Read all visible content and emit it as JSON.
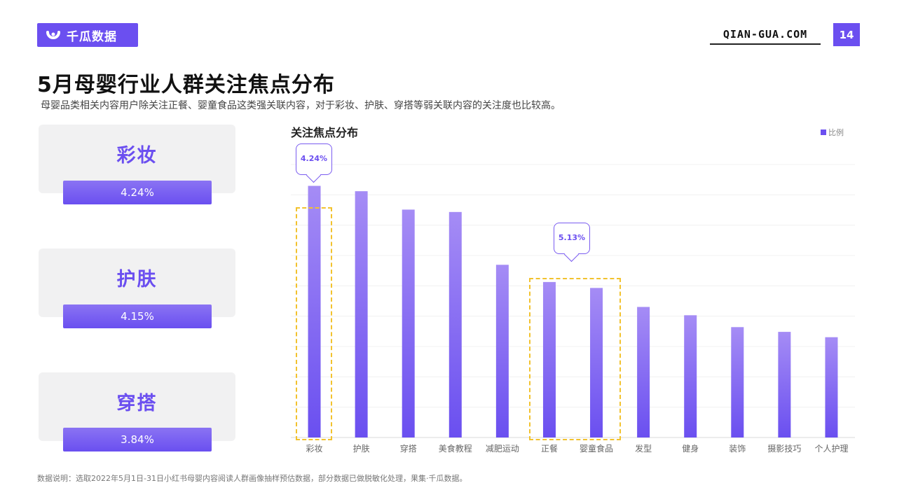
{
  "brand": {
    "logo_text": "千瓜数据",
    "site": "QIAN-GUA.COM",
    "page_number": "14",
    "accent_color": "#6b4ff0"
  },
  "header": {
    "title": "5月母婴行业人群关注焦点分布",
    "subtitle": "母婴品类相关内容用户除关注正餐、婴童食品这类强关联内容，对于彩妆、护肤、穿搭等弱关联内容的关注度也比较高。"
  },
  "cards": [
    {
      "label": "彩妆",
      "value": "4.24%"
    },
    {
      "label": "护肤",
      "value": "4.15%"
    },
    {
      "label": "穿搭",
      "value": "3.84%"
    }
  ],
  "callouts": {
    "left": "4.24%",
    "right": "5.13%"
  },
  "chart_data": {
    "type": "bar",
    "title": "关注焦点分布",
    "legend": [
      "比例"
    ],
    "legend_position": "top-right",
    "grid": true,
    "categories": [
      "彩妆",
      "护肤",
      "穿搭",
      "美食教程",
      "减肥运动",
      "正餐",
      "婴童食品",
      "发型",
      "健身",
      "装饰",
      "摄影技巧",
      "个人护理"
    ],
    "series": [
      {
        "name": "比例",
        "values": [
          4.24,
          4.15,
          3.84,
          3.8,
          2.91,
          2.62,
          2.52,
          2.2,
          2.06,
          1.86,
          1.78,
          1.69
        ]
      }
    ],
    "ylim": [
      0,
      4.6
    ],
    "bar_color_top": "#a58cf5",
    "bar_color_bottom": "#6a4ff0",
    "highlight_color": "#f2c22e"
  },
  "footnote": "数据说明：选取2022年5月1日-31日小红书母婴内容阅读人群画像抽样预估数据，部分数据已做脱敏化处理，果集·千瓜数据。"
}
